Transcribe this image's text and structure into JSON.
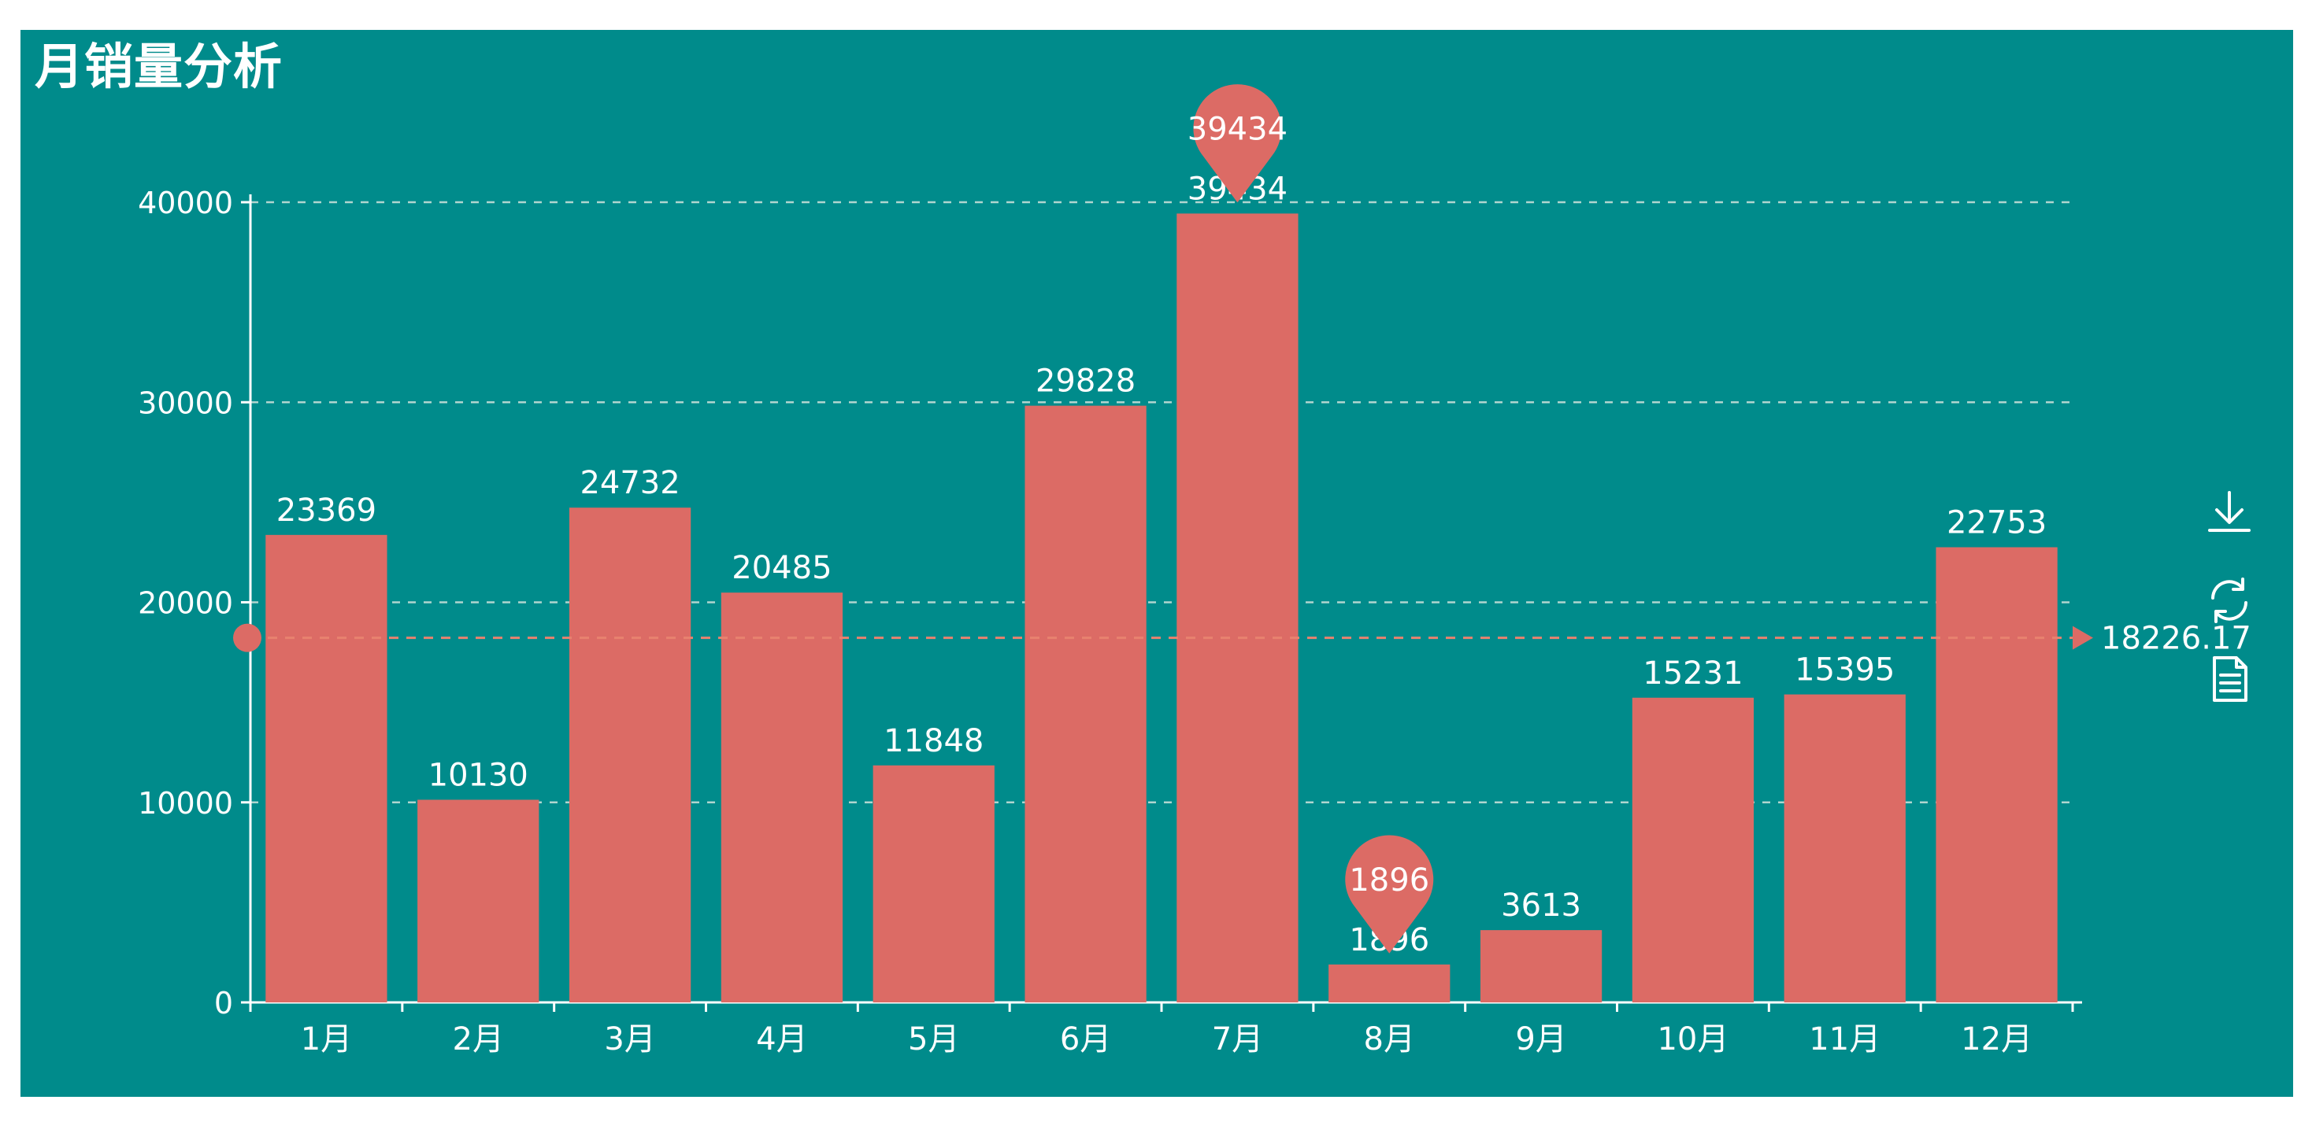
{
  "colors": {
    "background": "#008b8b",
    "bar": "#dc6b65",
    "text": "#ffffff",
    "grid": "#cfe3dc",
    "average_line": "#e8826f"
  },
  "chart_data": {
    "type": "bar",
    "title": "月销量分析",
    "categories": [
      "1月",
      "2月",
      "3月",
      "4月",
      "5月",
      "6月",
      "7月",
      "8月",
      "9月",
      "10月",
      "11月",
      "12月"
    ],
    "series": [
      {
        "values": [
          23369,
          10130,
          24732,
          20485,
          11848,
          29828,
          39434,
          1896,
          3613,
          15231,
          15395,
          22753
        ]
      }
    ],
    "ylim": [
      0,
      40000
    ],
    "y_ticks": [
      0,
      10000,
      20000,
      30000,
      40000
    ],
    "grid": true,
    "grid_style": "dashed",
    "data_labels": true,
    "mark_points": [
      {
        "type": "max",
        "category": "7月",
        "value": 39434,
        "label": "39434"
      },
      {
        "type": "min",
        "category": "8月",
        "value": 1896,
        "label": "1896"
      }
    ],
    "mark_line": {
      "type": "average",
      "value": 18226.17,
      "label": "18226.17"
    }
  },
  "toolbox": [
    {
      "name": "save-as-image",
      "icon": "download-icon"
    },
    {
      "name": "restore",
      "icon": "refresh-icon"
    },
    {
      "name": "data-view",
      "icon": "document-icon"
    }
  ]
}
